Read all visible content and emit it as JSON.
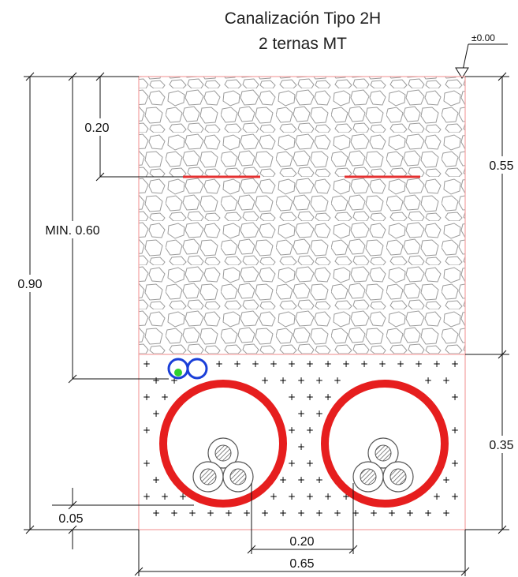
{
  "title": {
    "line1": "Canalización Tipo 2H",
    "line2": "2 ternas MT"
  },
  "level_marker": {
    "label": "±0.00",
    "icon": "level-triangle-icon"
  },
  "dimensions": {
    "tape_depth": "0.20",
    "min_depth": "MIN. 0.60",
    "total_depth": "0.90",
    "upper_layer": "0.55",
    "lower_layer": "0.35",
    "bottom_clearance": "0.05",
    "conduit_spacing": "0.20",
    "total_width": "0.65"
  },
  "colors": {
    "trench_outline": "#f2a0a0",
    "warning_tape": "#e53030",
    "conduit": "#e61e1e",
    "comm_duct": "#1a3fd8",
    "comm_dot": "#2fd12f",
    "dimension": "#111111",
    "gravel_stroke": "#9a9a9a",
    "cable_hatch": "#555555"
  },
  "elements": {
    "gravel_fill": "gravel-pattern",
    "sand_fill": "plus-pattern",
    "conduits": 2,
    "cables_per_conduit": 3,
    "warning_tapes": 2,
    "comm_ducts": 2
  }
}
